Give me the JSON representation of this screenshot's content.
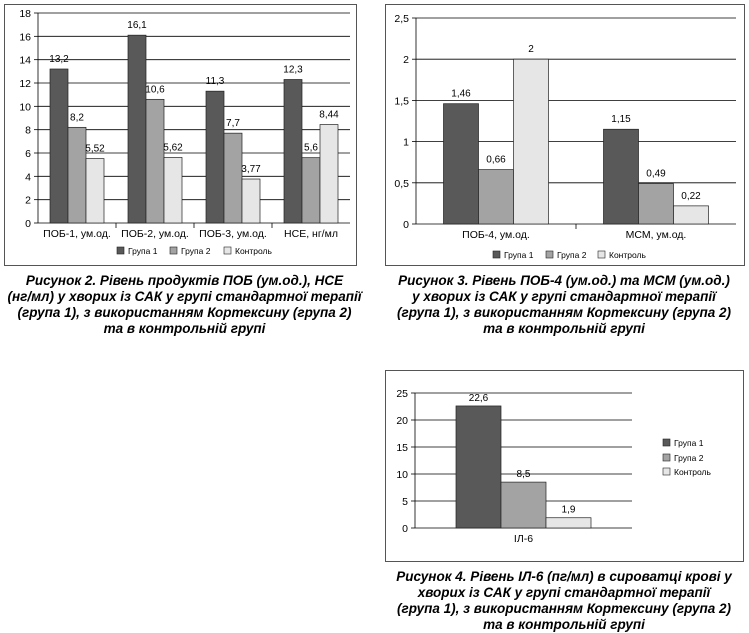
{
  "colors": {
    "group1": "#595959",
    "group2": "#a3a3a3",
    "control": "#e6e6e6"
  },
  "chart_data": [
    {
      "type": "bar",
      "categories": [
        "ПОБ-1, ум.од.",
        "ПОБ-2, ум.од.",
        "ПОБ-3, ум.од.",
        "НСЕ, нг/мл"
      ],
      "series": [
        {
          "name": "Група 1",
          "values": [
            13.2,
            16.1,
            11.3,
            12.3
          ],
          "labels": [
            "13,2",
            "16,1",
            "11,3",
            "12,3"
          ]
        },
        {
          "name": "Група 2",
          "values": [
            8.2,
            10.6,
            7.7,
            5.6
          ],
          "labels": [
            "8,2",
            "10,6",
            "7,7",
            "5,6"
          ]
        },
        {
          "name": "Контроль",
          "values": [
            5.52,
            5.62,
            3.77,
            8.44
          ],
          "labels": [
            "5,52",
            "5,62",
            "3,77",
            "8,44"
          ]
        }
      ],
      "yticks": [
        "0",
        "2",
        "4",
        "6",
        "8",
        "10",
        "12",
        "14",
        "16",
        "18"
      ],
      "ylim": [
        0,
        18
      ],
      "grid": true,
      "legend": "bottom"
    },
    {
      "type": "bar",
      "categories": [
        "ПОБ-4, ум.од.",
        "МСМ, ум.од."
      ],
      "series": [
        {
          "name": "Група 1",
          "values": [
            1.46,
            1.15
          ],
          "labels": [
            "1,46",
            "1,15"
          ]
        },
        {
          "name": "Група 2",
          "values": [
            0.66,
            0.49
          ],
          "labels": [
            "0,66",
            "0,49"
          ]
        },
        {
          "name": "Контроль",
          "values": [
            2,
            0.22
          ],
          "labels": [
            "2",
            "0,22"
          ]
        }
      ],
      "yticks": [
        "0",
        "0,5",
        "1",
        "1,5",
        "2",
        "2,5"
      ],
      "ylim": [
        0,
        2.5
      ],
      "grid": true,
      "legend": "bottom"
    },
    {
      "type": "bar",
      "categories": [
        "ІЛ-6"
      ],
      "series": [
        {
          "name": "Група 1",
          "values": [
            22.6
          ],
          "labels": [
            "22,6"
          ]
        },
        {
          "name": "Група 2",
          "values": [
            8.5
          ],
          "labels": [
            "8,5"
          ]
        },
        {
          "name": "Контроль",
          "values": [
            1.9
          ],
          "labels": [
            "1,9"
          ]
        }
      ],
      "yticks": [
        "0",
        "5",
        "10",
        "15",
        "20",
        "25"
      ],
      "ylim": [
        0,
        25
      ],
      "grid": true,
      "legend": "right"
    }
  ],
  "captions": {
    "fig2": [
      "Рисунок 2. Рівень продуктів ПОБ (ум.од.), НСЕ",
      "(нг/мл) у хворих із САК у групі стандартної терапії",
      "(група 1), з використанням Кортексину (група 2)",
      "та в контрольній групі"
    ],
    "fig3": [
      "Рисунок 3. Рівень ПОБ-4 (ум.од.) та МСМ (ум.од.)",
      "у хворих із САК у групі стандартної терапії",
      "(група 1), з використанням Кортексину (група 2)",
      "та в контрольній групі"
    ],
    "fig4": [
      "Рисунок 4. Рівень ІЛ-6 (пг/мл) в сироватці крові у",
      "хворих із САК у групі стандартної терапії",
      "(група 1), з використанням Кортексину (група 2)",
      "та в контрольній групі"
    ]
  }
}
